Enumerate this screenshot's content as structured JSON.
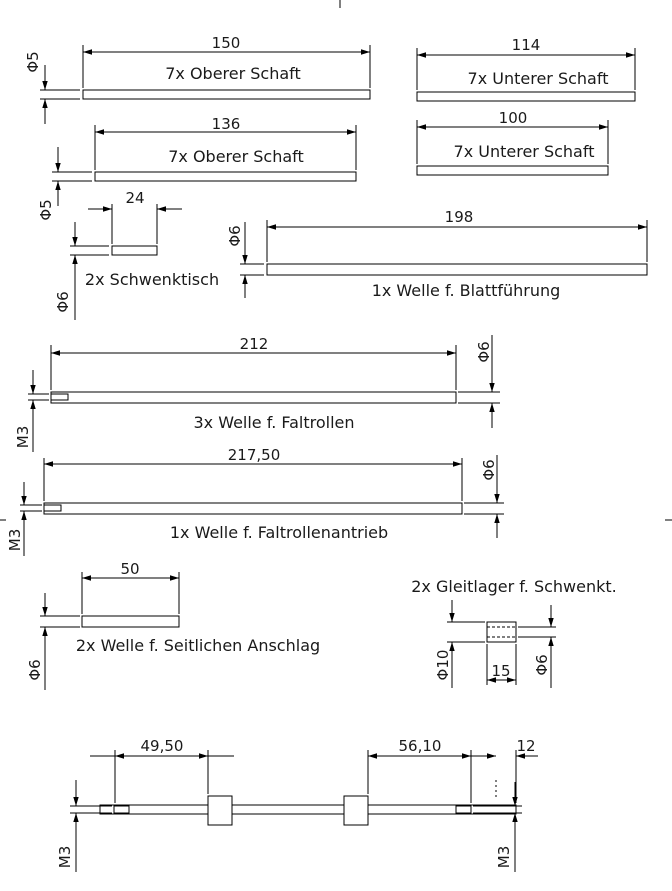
{
  "parts": {
    "p1": {
      "label": "7x Oberer Schaft",
      "length": "150",
      "dia": "Φ5"
    },
    "p2": {
      "label": "7x Unterer Schaft",
      "length": "114"
    },
    "p3": {
      "label": "7x Oberer Schaft",
      "length": "136",
      "dia": "Φ5"
    },
    "p4": {
      "label": "7x Unterer Schaft",
      "length": "100"
    },
    "p5": {
      "label": "2x Schwenktisch",
      "length": "24",
      "dia": "Φ6"
    },
    "p6": {
      "label": "1x Welle f. Blattführung",
      "length": "198",
      "dia": "Φ6"
    },
    "p7": {
      "label": "3x Welle f. Faltrollen",
      "length": "212",
      "dia": "Φ6",
      "thread": "M3"
    },
    "p8": {
      "label": "1x Welle f. Faltrollenantrieb",
      "length": "217,50",
      "dia": "Φ6",
      "thread": "M3"
    },
    "p9": {
      "label": "2x Welle f. Seitlichen Anschlag",
      "length": "50",
      "dia": "Φ6"
    },
    "p10": {
      "label": "2x Gleitlager f. Schwenkt.",
      "length": "15",
      "outer_dia": "Φ10",
      "inner_dia": "Φ6"
    },
    "assembly": {
      "dim_left": "49,50",
      "dim_right": "56,10",
      "dim_end": "12",
      "thread_left": "M3",
      "thread_right": "M3"
    }
  }
}
